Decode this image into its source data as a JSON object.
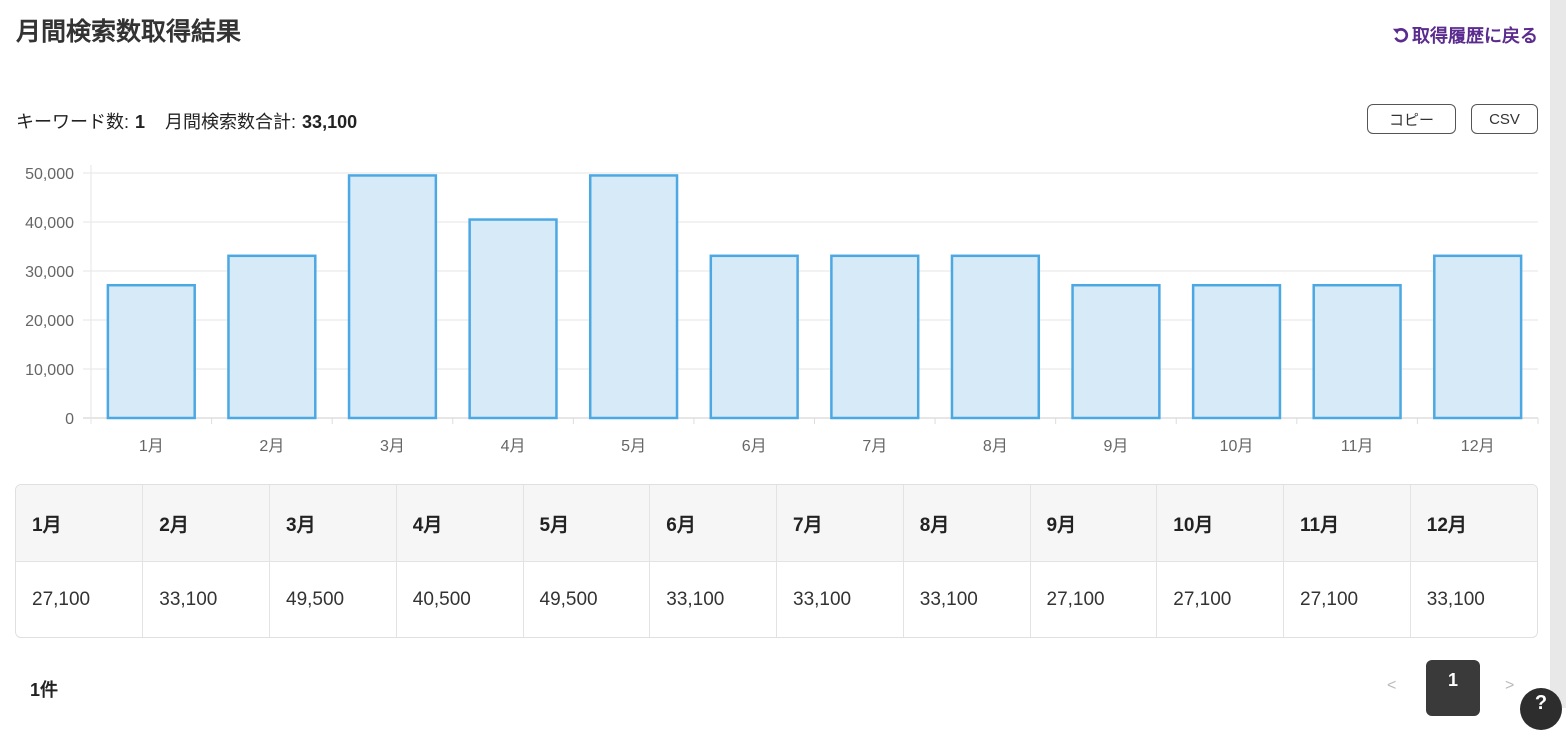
{
  "page": {
    "title": "月間検索数取得結果",
    "back_link": "取得履歴に戻る"
  },
  "summary": {
    "keyword_label": "キーワード数:",
    "keyword_count": "1",
    "total_label": "月間検索数合計:",
    "total_value": "33,100"
  },
  "buttons": {
    "copy": "コピー",
    "csv": "CSV"
  },
  "chart_data": {
    "type": "bar",
    "categories": [
      "1月",
      "2月",
      "3月",
      "4月",
      "5月",
      "6月",
      "7月",
      "8月",
      "9月",
      "10月",
      "11月",
      "12月"
    ],
    "values": [
      27100,
      33100,
      49500,
      40500,
      49500,
      33100,
      33100,
      33100,
      27100,
      27100,
      27100,
      33100
    ],
    "ylim": [
      0,
      50000
    ],
    "yticks": [
      "0",
      "10,000",
      "20,000",
      "30,000",
      "40,000",
      "50,000"
    ],
    "grid": true,
    "bar_fill": "#d6eaf8",
    "bar_stroke": "#4ca8e3"
  },
  "table": {
    "headers": [
      "1月",
      "2月",
      "3月",
      "4月",
      "5月",
      "6月",
      "7月",
      "8月",
      "9月",
      "10月",
      "11月",
      "12月"
    ],
    "values": [
      "27,100",
      "33,100",
      "49,500",
      "40,500",
      "49,500",
      "33,100",
      "33,100",
      "33,100",
      "27,100",
      "27,100",
      "27,100",
      "33,100"
    ]
  },
  "footer": {
    "count": "1件",
    "prev": "<",
    "page": "1",
    "next": ">",
    "help": "?"
  },
  "colors": {
    "accent": "#5b2c8f",
    "pager_active": "#3a3a3a"
  }
}
